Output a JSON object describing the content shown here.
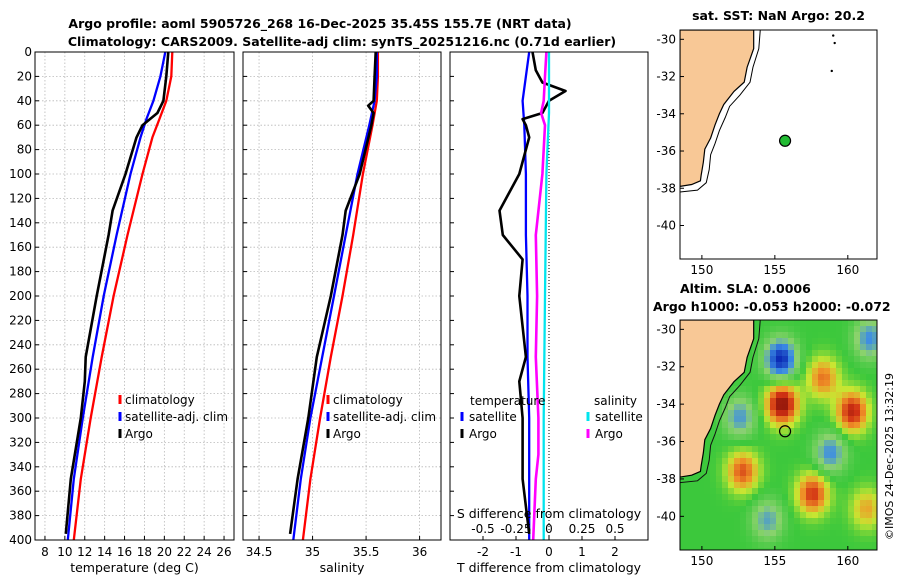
{
  "header": {
    "title_line1": "Argo profile: aoml 5905726_268 16-Dec-2025 35.45S 155.7E (NRT data)",
    "title_line2": "Climatology: CARS2009. Satellite-adj clim: synTS_20251216.nc (0.71d earlier)"
  },
  "copyright": "©IMOS 24-Dec-2025 13:32:19",
  "colors": {
    "climatology": "#ff0000",
    "satellite": "#0000ff",
    "argo": "#000000",
    "satellite_salinity": "#00e5ee",
    "argo_salinity": "#ff00ff",
    "land": "#f8c896",
    "ocean_map_bg": "#ffffff",
    "marker_green": "#22bb33",
    "grid": "#b8b8b8"
  },
  "chart_data": [
    {
      "id": "temperature_profile",
      "type": "line",
      "xlabel": "temperature (deg C)",
      "ylabel": "",
      "xlim": [
        7,
        27
      ],
      "ylim": [
        400,
        0
      ],
      "xticks": [
        8,
        10,
        12,
        14,
        16,
        18,
        20,
        22,
        24,
        26
      ],
      "yticks": [
        0,
        20,
        40,
        60,
        80,
        100,
        120,
        140,
        160,
        180,
        200,
        220,
        240,
        260,
        280,
        300,
        320,
        340,
        360,
        380,
        400
      ],
      "grid": true,
      "legend": {
        "position": "right-middle",
        "entries": [
          {
            "label": "climatology",
            "color": "#ff0000"
          },
          {
            "label": "satellite-adj. clim",
            "color": "#0000ff"
          },
          {
            "label": "Argo",
            "color": "#000000"
          }
        ]
      },
      "series": [
        {
          "name": "climatology",
          "color": "#ff0000",
          "depth": [
            0,
            20,
            40,
            55,
            70,
            100,
            150,
            200,
            250,
            300,
            350,
            400
          ],
          "values": [
            20.8,
            20.7,
            20.2,
            19.5,
            18.8,
            17.8,
            16.3,
            14.9,
            13.7,
            12.6,
            11.6,
            10.9
          ]
        },
        {
          "name": "satellite-adj. clim",
          "color": "#0000ff",
          "depth": [
            0,
            20,
            40,
            55,
            70,
            100,
            150,
            200,
            250,
            300,
            350,
            400
          ],
          "values": [
            20.1,
            19.6,
            18.9,
            18.2,
            17.6,
            16.6,
            15.2,
            13.9,
            12.8,
            11.8,
            10.9,
            10.3
          ]
        },
        {
          "name": "Argo",
          "color": "#000000",
          "depth": [
            0,
            20,
            40,
            50,
            60,
            70,
            100,
            130,
            150,
            200,
            250,
            270,
            300,
            350,
            395
          ],
          "values": [
            20.4,
            20.2,
            19.9,
            19.3,
            17.8,
            17.2,
            16.1,
            14.8,
            14.4,
            13.2,
            12.1,
            12.0,
            11.6,
            10.6,
            10.1
          ]
        }
      ]
    },
    {
      "id": "salinity_profile",
      "type": "line",
      "xlabel": "salinity",
      "ylabel": "",
      "xlim": [
        34.35,
        36.2
      ],
      "ylim": [
        400,
        0
      ],
      "xticks": [
        34.5,
        35,
        35.5,
        36
      ],
      "xtick_labels": [
        "34.5",
        "35",
        "35.5",
        "36"
      ],
      "grid": true,
      "legend": {
        "position": "right-middle",
        "entries": [
          {
            "label": "climatology",
            "color": "#ff0000"
          },
          {
            "label": "satellite-adj. clim",
            "color": "#0000ff"
          },
          {
            "label": "Argo",
            "color": "#000000"
          }
        ]
      },
      "series": [
        {
          "name": "climatology",
          "color": "#ff0000",
          "depth": [
            0,
            20,
            40,
            60,
            100,
            150,
            200,
            250,
            300,
            350,
            400
          ],
          "values": [
            35.61,
            35.61,
            35.6,
            35.56,
            35.47,
            35.38,
            35.28,
            35.17,
            35.07,
            34.98,
            34.91
          ]
        },
        {
          "name": "satellite-adj. clim",
          "color": "#0000ff",
          "depth": [
            0,
            20,
            40,
            60,
            100,
            150,
            200,
            250,
            300,
            350,
            400
          ],
          "values": [
            35.6,
            35.6,
            35.58,
            35.53,
            35.42,
            35.31,
            35.2,
            35.09,
            34.98,
            34.89,
            34.82
          ]
        },
        {
          "name": "Argo",
          "color": "#000000",
          "depth": [
            0,
            20,
            40,
            44,
            50,
            60,
            100,
            130,
            150,
            200,
            250,
            300,
            350,
            395
          ],
          "values": [
            35.59,
            35.58,
            35.57,
            35.52,
            35.57,
            35.55,
            35.44,
            35.31,
            35.28,
            35.17,
            35.04,
            34.96,
            34.86,
            34.79
          ]
        }
      ]
    },
    {
      "id": "difference_profile",
      "type": "line",
      "xlabel": "T difference from climatology",
      "top_axis_label": "S difference from climatology",
      "xlim": [
        -3,
        3
      ],
      "ylim": [
        400,
        0
      ],
      "xticks": [
        -2,
        -1,
        0,
        1,
        2
      ],
      "xtick_labels": [
        "-2",
        "-1",
        "0",
        "1",
        "2"
      ],
      "top_xticks": [
        -0.5,
        -0.25,
        0,
        0.25,
        0.5
      ],
      "top_xtick_labels": [
        "-0.5",
        "-0.25",
        "0",
        "0.25",
        "0.5"
      ],
      "top_scale": 0.25,
      "zero_line": "dotted",
      "legend": {
        "groups": [
          {
            "title": "temperature",
            "entries": [
              {
                "label": "satellite",
                "color": "#0000ff"
              },
              {
                "label": "Argo",
                "color": "#000000"
              }
            ]
          },
          {
            "title": "salinity",
            "entries": [
              {
                "label": "satellite",
                "color": "#00e5ee"
              },
              {
                "label": "Argo",
                "color": "#ff00ff"
              }
            ]
          }
        ]
      },
      "series": [
        {
          "name": "temperature satellite",
          "color": "#0000ff",
          "depth": [
            0,
            20,
            40,
            60,
            100,
            150,
            200,
            250,
            300,
            350,
            400
          ],
          "values": [
            -0.6,
            -0.7,
            -0.8,
            -0.75,
            -0.7,
            -0.7,
            -0.65,
            -0.65,
            -0.6,
            -0.6,
            -0.6
          ]
        },
        {
          "name": "temperature Argo",
          "color": "#000000",
          "depth": [
            0,
            15,
            25,
            32,
            40,
            50,
            55,
            60,
            70,
            100,
            130,
            150,
            170,
            200,
            250,
            270,
            300,
            350,
            395
          ],
          "values": [
            -0.5,
            -0.4,
            -0.2,
            0.5,
            0.0,
            -0.2,
            -0.8,
            -0.7,
            -0.6,
            -0.9,
            -1.5,
            -1.4,
            -0.8,
            -0.9,
            -0.7,
            -0.9,
            -0.8,
            -0.8,
            -0.6
          ]
        },
        {
          "name": "salinity satellite",
          "color": "#00e5ee",
          "depth": [
            0,
            50,
            100,
            200,
            300,
            400
          ],
          "values": [
            0.0,
            0.0,
            -0.02,
            -0.03,
            -0.04,
            -0.04
          ]
        },
        {
          "name": "salinity Argo",
          "color": "#ff00ff",
          "depth": [
            0,
            20,
            40,
            50,
            60,
            100,
            150,
            200,
            250,
            300,
            330,
            350,
            400
          ],
          "values": [
            -0.02,
            -0.03,
            -0.04,
            -0.06,
            -0.03,
            -0.05,
            -0.1,
            -0.09,
            -0.1,
            -0.08,
            -0.08,
            -0.1,
            -0.12
          ]
        }
      ]
    },
    {
      "id": "sst_map",
      "type": "map",
      "title": "sat. SST: NaN Argo: 20.2",
      "xlim": [
        148.5,
        162
      ],
      "ylim": [
        -41.8,
        -29.5
      ],
      "xticks": [
        150,
        155,
        160
      ],
      "yticks": [
        -30,
        -32,
        -34,
        -36,
        -38,
        -40
      ],
      "argo_position": {
        "lon": 155.7,
        "lat": -35.45
      }
    },
    {
      "id": "sla_map",
      "type": "heatmap",
      "title_line1": "Altim. SLA: 0.0006",
      "title_line2": "Argo h1000: -0.053 h2000: -0.072",
      "xlim": [
        148.5,
        162
      ],
      "ylim": [
        -41.8,
        -29.5
      ],
      "xticks": [
        150,
        155,
        160
      ],
      "yticks": [
        -30,
        -32,
        -34,
        -36,
        -38,
        -40
      ],
      "argo_position": {
        "lon": 155.7,
        "lat": -35.45
      },
      "features": [
        {
          "kind": "low",
          "lon": 155.4,
          "lat": -31.6,
          "amp": -1.0
        },
        {
          "kind": "high",
          "lon": 155.5,
          "lat": -34.0,
          "amp": 1.1
        },
        {
          "kind": "high",
          "lon": 160.3,
          "lat": -34.4,
          "amp": 0.9
        },
        {
          "kind": "high",
          "lon": 158.3,
          "lat": -32.6,
          "amp": 0.6
        },
        {
          "kind": "high",
          "lon": 152.8,
          "lat": -37.6,
          "amp": 0.7
        },
        {
          "kind": "high",
          "lon": 157.6,
          "lat": -38.8,
          "amp": 0.8
        },
        {
          "kind": "low",
          "lon": 158.8,
          "lat": -36.6,
          "amp": -0.6
        },
        {
          "kind": "low",
          "lon": 152.6,
          "lat": -34.7,
          "amp": -0.55
        },
        {
          "kind": "low",
          "lon": 161.5,
          "lat": -30.5,
          "amp": -0.6
        },
        {
          "kind": "low",
          "lon": 154.5,
          "lat": -40.2,
          "amp": -0.5
        },
        {
          "kind": "high",
          "lon": 161.3,
          "lat": -39.6,
          "amp": 0.45
        }
      ]
    }
  ]
}
